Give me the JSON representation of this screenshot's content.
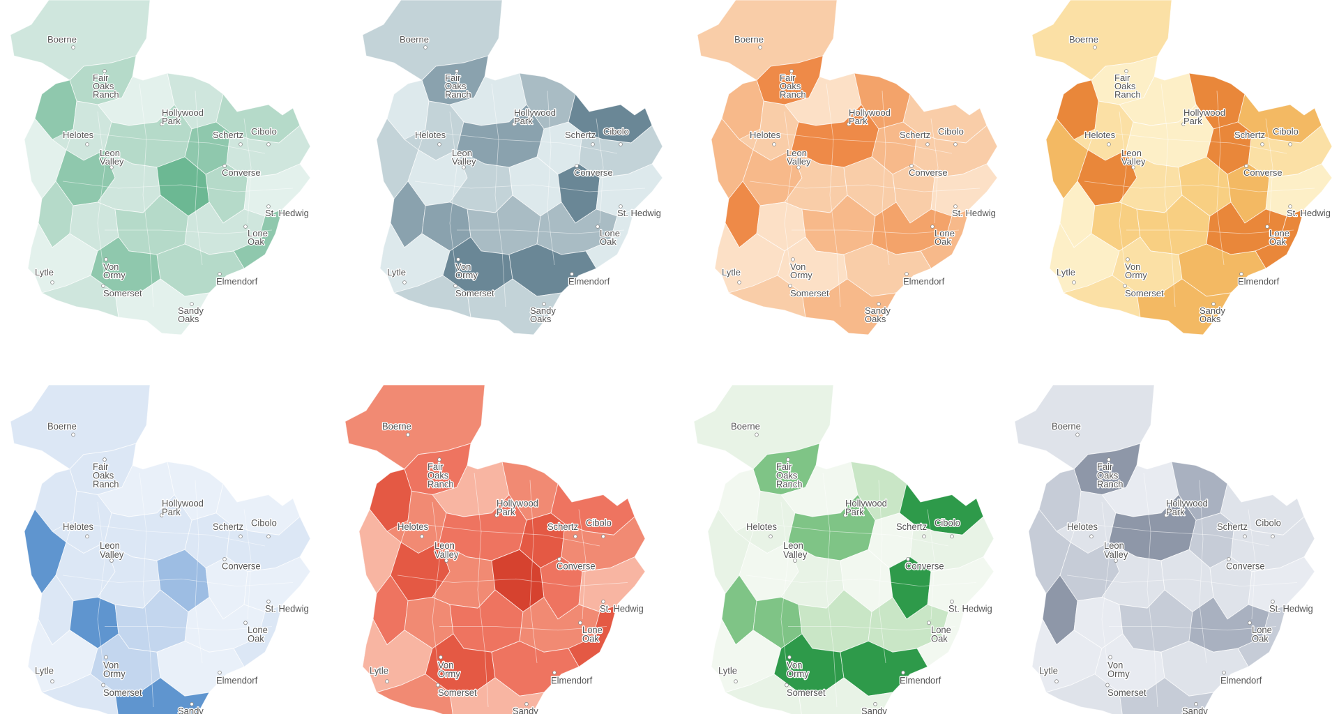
{
  "cities": [
    {
      "id": "boerne",
      "label": [
        "Boerne"
      ]
    },
    {
      "id": "fair-oaks-ranch",
      "label": [
        "Fair",
        "Oaks",
        "Ranch"
      ]
    },
    {
      "id": "hollywood-park",
      "label": [
        "Hollywood",
        "Park"
      ]
    },
    {
      "id": "helotes",
      "label": [
        "Helotes"
      ]
    },
    {
      "id": "schertz",
      "label": [
        "Schertz"
      ]
    },
    {
      "id": "cibolo",
      "label": [
        "Cibolo"
      ]
    },
    {
      "id": "leon-valley",
      "label": [
        "Leon",
        "Valley"
      ]
    },
    {
      "id": "converse",
      "label": [
        "Converse"
      ]
    },
    {
      "id": "st-hedwig",
      "label": [
        "St. Hedwig"
      ]
    },
    {
      "id": "lone-oak",
      "label": [
        "Lone",
        "Oak"
      ]
    },
    {
      "id": "von-ormy",
      "label": [
        "Von",
        "Ormy"
      ]
    },
    {
      "id": "lytle",
      "label": [
        "Lytle"
      ]
    },
    {
      "id": "elmendorf",
      "label": [
        "Elmendorf"
      ]
    },
    {
      "id": "somerset",
      "label": [
        "Somerset"
      ]
    },
    {
      "id": "sandy-oaks",
      "label": [
        "Sandy",
        "Oaks"
      ]
    }
  ],
  "maps": [
    {
      "id": "map-1",
      "base": "#cfe6dd",
      "light": "#e3f1ec",
      "mid": "#b5dac9",
      "dark": "#8fc8ad",
      "darkest": "#6cb893"
    },
    {
      "id": "map-2",
      "base": "#c3d3d8",
      "light": "#dde9ec",
      "mid": "#a9bcc4",
      "dark": "#8aa2ae",
      "darkest": "#6a8796"
    },
    {
      "id": "map-3",
      "base": "#f9cda8",
      "light": "#fce0c6",
      "mid": "#f7b98a",
      "dark": "#f3a36a",
      "darkest": "#ee8a48"
    },
    {
      "id": "map-4",
      "base": "#fbe0a5",
      "light": "#fdefc7",
      "mid": "#f8cf82",
      "dark": "#f3b963",
      "darkest": "#e9873a"
    },
    {
      "id": "map-5",
      "base": "#dce7f5",
      "light": "#e9f0f9",
      "mid": "#c3d6ee",
      "dark": "#9dbde3",
      "darkest": "#5f95cf"
    },
    {
      "id": "map-6",
      "base": "#f18a73",
      "light": "#f8b5a2",
      "mid": "#ee7460",
      "dark": "#e45944",
      "darkest": "#d6422f"
    },
    {
      "id": "map-7",
      "base": "#e8f3e6",
      "light": "#f2f8f0",
      "mid": "#c9e6c6",
      "dark": "#7fc486",
      "darkest": "#2e9a4a"
    },
    {
      "id": "map-8",
      "base": "#dfe3ea",
      "light": "#e8ebf1",
      "mid": "#c6ccd7",
      "dark": "#a9b1c0",
      "darkest": "#8e97a8"
    }
  ]
}
